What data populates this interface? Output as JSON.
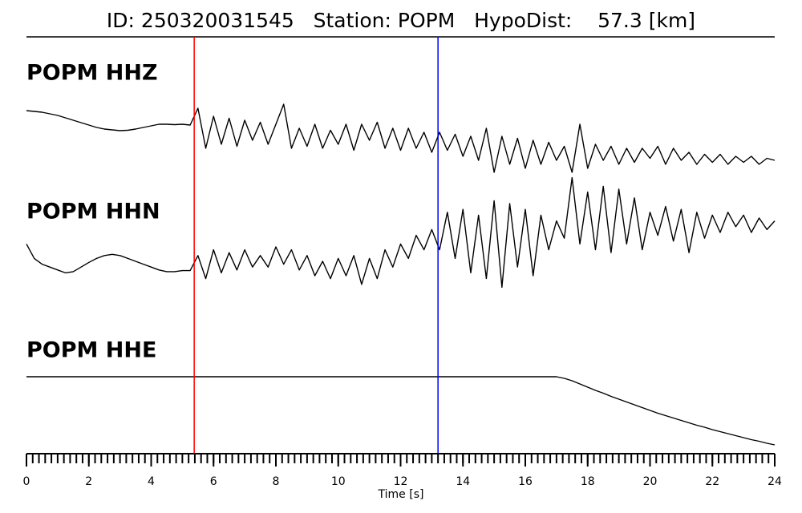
{
  "chart_data": {
    "type": "line",
    "title": "ID: 250320031545   Station: POPM   HypoDist:    57.3 [km]",
    "xlabel": "Time [s]",
    "xlim": [
      0,
      24
    ],
    "xticks": [
      0,
      2,
      4,
      6,
      8,
      10,
      12,
      14,
      16,
      18,
      20,
      22,
      24
    ],
    "xminor_step": 0.2,
    "ylim": [
      -1,
      1
    ],
    "label_color": "#4e9a06",
    "markers": [
      {
        "x": 5.38,
        "color": "#ff0000"
      },
      {
        "x": 13.2,
        "color": "#0000ff"
      }
    ],
    "x": [
      0,
      0.25,
      0.5,
      0.75,
      1,
      1.25,
      1.5,
      1.75,
      2,
      2.25,
      2.5,
      2.75,
      3,
      3.25,
      3.5,
      3.75,
      4,
      4.25,
      4.5,
      4.75,
      5,
      5.25,
      5.5,
      5.75,
      6,
      6.25,
      6.5,
      6.75,
      7,
      7.25,
      7.5,
      7.75,
      8,
      8.25,
      8.5,
      8.75,
      9,
      9.25,
      9.5,
      9.75,
      10,
      10.25,
      10.5,
      10.75,
      11,
      11.25,
      11.5,
      11.75,
      12,
      12.25,
      12.5,
      12.75,
      13,
      13.25,
      13.5,
      13.75,
      14,
      14.25,
      14.5,
      14.75,
      15,
      15.25,
      15.5,
      15.75,
      16,
      16.25,
      16.5,
      16.75,
      17,
      17.25,
      17.5,
      17.75,
      18,
      18.25,
      18.5,
      18.75,
      19,
      19.25,
      19.5,
      19.75,
      20,
      20.25,
      20.5,
      20.75,
      21,
      21.25,
      21.5,
      21.75,
      22,
      22.25,
      22.5,
      22.75,
      23,
      23.25,
      23.5,
      23.75,
      24
    ],
    "series": [
      {
        "name": "POPM HHZ",
        "color": "#000000",
        "values": [
          0.64,
          0.62,
          0.6,
          0.56,
          0.52,
          0.46,
          0.4,
          0.34,
          0.28,
          0.22,
          0.18,
          0.16,
          0.14,
          0.15,
          0.18,
          0.22,
          0.26,
          0.3,
          0.3,
          0.29,
          0.3,
          0.28,
          0.7,
          -0.3,
          0.5,
          -0.2,
          0.45,
          -0.25,
          0.4,
          -0.1,
          0.35,
          -0.2,
          0.3,
          0.8,
          -0.3,
          0.2,
          -0.25,
          0.3,
          -0.3,
          0.15,
          -0.2,
          0.3,
          -0.35,
          0.3,
          -0.1,
          0.35,
          -0.3,
          0.2,
          -0.35,
          0.2,
          -0.3,
          0.1,
          -0.4,
          0.1,
          -0.35,
          0.05,
          -0.5,
          0.0,
          -0.6,
          0.2,
          -0.9,
          0.0,
          -0.7,
          -0.05,
          -0.8,
          -0.1,
          -0.7,
          -0.15,
          -0.6,
          -0.25,
          -0.9,
          0.3,
          -0.8,
          -0.2,
          -0.6,
          -0.25,
          -0.7,
          -0.3,
          -0.65,
          -0.3,
          -0.55,
          -0.25,
          -0.7,
          -0.3,
          -0.6,
          -0.4,
          -0.7,
          -0.45,
          -0.65,
          -0.45,
          -0.7,
          -0.5,
          -0.65,
          -0.5,
          -0.7,
          -0.55,
          -0.6
        ]
      },
      {
        "name": "POPM HHN",
        "color": "#000000",
        "values": [
          -0.2,
          -0.45,
          -0.55,
          -0.6,
          -0.65,
          -0.7,
          -0.68,
          -0.6,
          -0.52,
          -0.45,
          -0.4,
          -0.38,
          -0.4,
          -0.45,
          -0.5,
          -0.55,
          -0.6,
          -0.65,
          -0.68,
          -0.68,
          -0.66,
          -0.66,
          -0.4,
          -0.8,
          -0.3,
          -0.7,
          -0.35,
          -0.65,
          -0.3,
          -0.6,
          -0.4,
          -0.6,
          -0.25,
          -0.55,
          -0.3,
          -0.65,
          -0.4,
          -0.75,
          -0.5,
          -0.8,
          -0.45,
          -0.75,
          -0.4,
          -0.9,
          -0.45,
          -0.8,
          -0.3,
          -0.6,
          -0.2,
          -0.45,
          -0.05,
          -0.3,
          0.05,
          -0.3,
          0.35,
          -0.45,
          0.4,
          -0.7,
          0.3,
          -0.8,
          0.55,
          -0.95,
          0.5,
          -0.6,
          0.4,
          -0.75,
          0.3,
          -0.3,
          0.2,
          -0.1,
          0.95,
          -0.2,
          0.7,
          -0.3,
          0.8,
          -0.35,
          0.75,
          -0.2,
          0.6,
          -0.3,
          0.35,
          -0.05,
          0.45,
          -0.15,
          0.4,
          -0.35,
          0.35,
          -0.1,
          0.3,
          0.0,
          0.35,
          0.1,
          0.3,
          0.0,
          0.25,
          0.05,
          0.2
        ]
      },
      {
        "name": "POPM HHE",
        "color": "#000000",
        "values": [
          0.86,
          0.86,
          0.86,
          0.86,
          0.86,
          0.86,
          0.86,
          0.86,
          0.86,
          0.86,
          0.86,
          0.86,
          0.86,
          0.86,
          0.86,
          0.86,
          0.86,
          0.86,
          0.86,
          0.86,
          0.86,
          0.86,
          0.86,
          0.86,
          0.86,
          0.86,
          0.86,
          0.86,
          0.86,
          0.86,
          0.86,
          0.86,
          0.86,
          0.86,
          0.86,
          0.86,
          0.86,
          0.86,
          0.86,
          0.86,
          0.86,
          0.86,
          0.86,
          0.86,
          0.86,
          0.86,
          0.86,
          0.86,
          0.86,
          0.86,
          0.86,
          0.86,
          0.86,
          0.86,
          0.86,
          0.86,
          0.86,
          0.86,
          0.86,
          0.86,
          0.86,
          0.86,
          0.86,
          0.86,
          0.86,
          0.86,
          0.86,
          0.86,
          0.86,
          0.82,
          0.76,
          0.68,
          0.6,
          0.52,
          0.45,
          0.37,
          0.3,
          0.23,
          0.16,
          0.09,
          0.02,
          -0.05,
          -0.11,
          -0.17,
          -0.23,
          -0.29,
          -0.35,
          -0.4,
          -0.46,
          -0.51,
          -0.56,
          -0.61,
          -0.66,
          -0.71,
          -0.75,
          -0.8,
          -0.84
        ]
      }
    ]
  }
}
